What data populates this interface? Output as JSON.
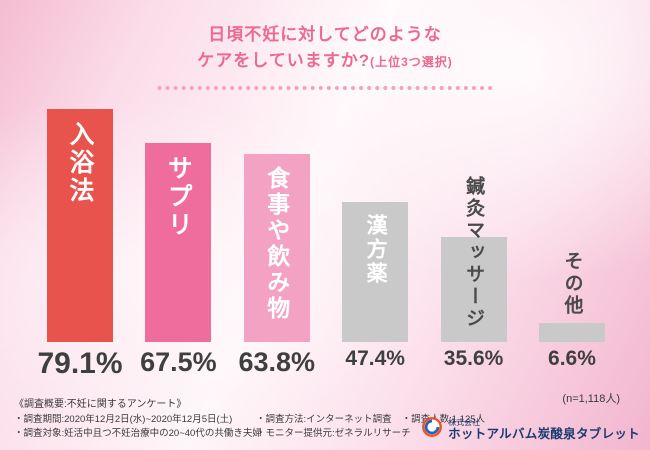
{
  "title": {
    "line1": "日頃不妊に対してどのような",
    "line2_main": "ケアをしていますか?",
    "line2_sub": "(上位3つ選択)"
  },
  "chart_data": {
    "type": "bar",
    "title": "日頃不妊に対してどのようなケアをしていますか?(上位3つ選択)",
    "categories": [
      "入浴法",
      "サプリ",
      "食事や飲み物",
      "漢方薬",
      "鍼灸マッサージ",
      "その他"
    ],
    "values": [
      79.1,
      67.5,
      63.8,
      47.4,
      35.6,
      6.6
    ],
    "value_labels": [
      "79.1%",
      "67.5%",
      "63.8%",
      "47.4%",
      "35.6%",
      "6.6%"
    ],
    "bar_colors": [
      "#e9534e",
      "#ee6d9d",
      "#f3a2c3",
      "#c9c9c9",
      "#c9c9c9",
      "#c9c9c9"
    ],
    "ylim": [
      0,
      100
    ],
    "grid": false,
    "legend": "none",
    "sample_size_note": "(n=1,118人)"
  },
  "footer": {
    "overview_title": "《調査概要:不妊に関するアンケート》",
    "period": "・調査期間:2020年12月2日(水)~2020年12月5日(土)",
    "subjects": "・調査対象:妊活中且つ不妊治療中の20~40代の共働き夫婦",
    "method": "・調査方法:インターネット調査",
    "count": "・調査人数:1,125人",
    "monitor": "・モニター提供元:ゼネラルリサーチ"
  },
  "logo": {
    "prefix": "株式会社",
    "name": "ホットアルバム炭酸泉タブレット"
  },
  "colors": {
    "title_pink": "#ea6a90",
    "dots_pink": "#f2a3c0",
    "text_dark": "#3f3f3f",
    "logo_navy": "#1b3a70"
  }
}
